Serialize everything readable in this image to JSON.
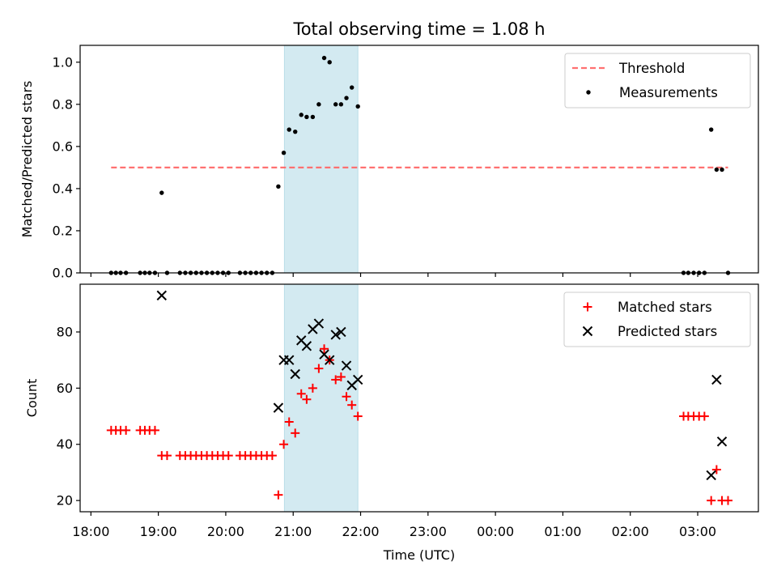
{
  "figure": {
    "title": "Total observing time = 1.08 h",
    "xlabel": "Time (UTC)",
    "colors": {
      "threshold": "#ff7070",
      "measurement": "#000000",
      "matched": "#ff0000",
      "predicted": "#000000",
      "highlight": "#d3eaf1",
      "highlight_edge": "#b9dde8"
    }
  },
  "chart_data": [
    {
      "type": "scatter",
      "ylabel": "Matched/Predicted stars",
      "xlim": [
        17.84,
        27.9
      ],
      "ylim": [
        0,
        1.08
      ],
      "yticks": [
        0.0,
        0.2,
        0.4,
        0.6,
        0.8,
        1.0
      ],
      "ytick_labels": [
        "0.0",
        "0.2",
        "0.4",
        "0.6",
        "0.8",
        "1.0"
      ],
      "xticks": [
        18,
        19,
        20,
        21,
        22,
        23,
        24,
        25,
        26,
        27
      ],
      "xtick_labels": [
        "18:00",
        "19:00",
        "20:00",
        "21:00",
        "22:00",
        "23:00",
        "00:00",
        "01:00",
        "02:00",
        "03:00"
      ],
      "highlight_span": [
        20.87,
        21.96
      ],
      "legend": "top-right",
      "threshold": {
        "name": "Threshold",
        "y": 0.5,
        "x_range": [
          18.3,
          27.45
        ]
      },
      "series": [
        {
          "name": "Measurements",
          "x": [
            18.3,
            18.37,
            18.44,
            18.52,
            18.73,
            18.8,
            18.87,
            18.95,
            19.05,
            19.13,
            19.32,
            19.4,
            19.48,
            19.56,
            19.64,
            19.72,
            19.8,
            19.88,
            19.96,
            20.04,
            20.21,
            20.29,
            20.37,
            20.45,
            20.53,
            20.61,
            20.69,
            20.78,
            20.86,
            20.94,
            21.03,
            21.12,
            21.2,
            21.29,
            21.38,
            21.46,
            21.54,
            21.63,
            21.71,
            21.79,
            21.87,
            21.96,
            26.79,
            26.86,
            26.94,
            27.02,
            27.1,
            27.2,
            27.28,
            27.36,
            27.45
          ],
          "y": [
            0,
            0,
            0,
            0,
            0,
            0,
            0,
            0,
            0.38,
            0,
            0,
            0,
            0,
            0,
            0,
            0,
            0,
            0,
            0,
            0,
            0,
            0,
            0,
            0,
            0,
            0,
            0,
            0.41,
            0.57,
            0.68,
            0.67,
            0.75,
            0.74,
            0.74,
            0.8,
            1.02,
            1.0,
            0.8,
            0.8,
            0.83,
            0.88,
            0.79,
            0,
            0,
            0,
            0,
            0,
            0.68,
            0.49,
            0.49,
            0
          ]
        }
      ]
    },
    {
      "type": "scatter",
      "ylabel": "Count",
      "xlim": [
        17.84,
        27.9
      ],
      "ylim": [
        16,
        97
      ],
      "yticks": [
        20,
        40,
        60,
        80
      ],
      "ytick_labels": [
        "20",
        "40",
        "60",
        "80"
      ],
      "xticks": [
        18,
        19,
        20,
        21,
        22,
        23,
        24,
        25,
        26,
        27
      ],
      "xtick_labels": [
        "18:00",
        "19:00",
        "20:00",
        "21:00",
        "22:00",
        "23:00",
        "00:00",
        "01:00",
        "02:00",
        "03:00"
      ],
      "highlight_span": [
        20.87,
        21.96
      ],
      "legend": "top-right",
      "series": [
        {
          "name": "Matched stars",
          "marker": "plus",
          "x": [
            18.3,
            18.37,
            18.44,
            18.52,
            18.73,
            18.8,
            18.87,
            18.95,
            19.05,
            19.13,
            19.32,
            19.4,
            19.48,
            19.56,
            19.64,
            19.72,
            19.8,
            19.88,
            19.96,
            20.04,
            20.21,
            20.29,
            20.37,
            20.45,
            20.53,
            20.61,
            20.69,
            20.78,
            20.86,
            20.94,
            21.03,
            21.12,
            21.2,
            21.29,
            21.38,
            21.46,
            21.54,
            21.63,
            21.71,
            21.79,
            21.87,
            21.96,
            26.79,
            26.86,
            26.94,
            27.02,
            27.1,
            27.2,
            27.28,
            27.36,
            27.45
          ],
          "y": [
            45,
            45,
            45,
            45,
            45,
            45,
            45,
            45,
            36,
            36,
            36,
            36,
            36,
            36,
            36,
            36,
            36,
            36,
            36,
            36,
            36,
            36,
            36,
            36,
            36,
            36,
            36,
            22,
            40,
            48,
            44,
            58,
            56,
            60,
            67,
            74,
            70,
            63,
            64,
            57,
            54,
            50,
            50,
            50,
            50,
            50,
            50,
            20,
            31,
            20,
            20
          ]
        },
        {
          "name": "Predicted stars",
          "marker": "x",
          "x": [
            19.05,
            20.78,
            20.86,
            20.94,
            21.03,
            21.12,
            21.2,
            21.29,
            21.38,
            21.46,
            21.54,
            21.63,
            21.71,
            21.79,
            21.87,
            21.96,
            27.2,
            27.28,
            27.36
          ],
          "y": [
            93,
            53,
            70,
            70,
            65,
            77,
            75,
            81,
            83,
            72,
            70,
            79,
            80,
            68,
            61,
            63,
            29,
            63,
            41
          ]
        }
      ]
    }
  ]
}
